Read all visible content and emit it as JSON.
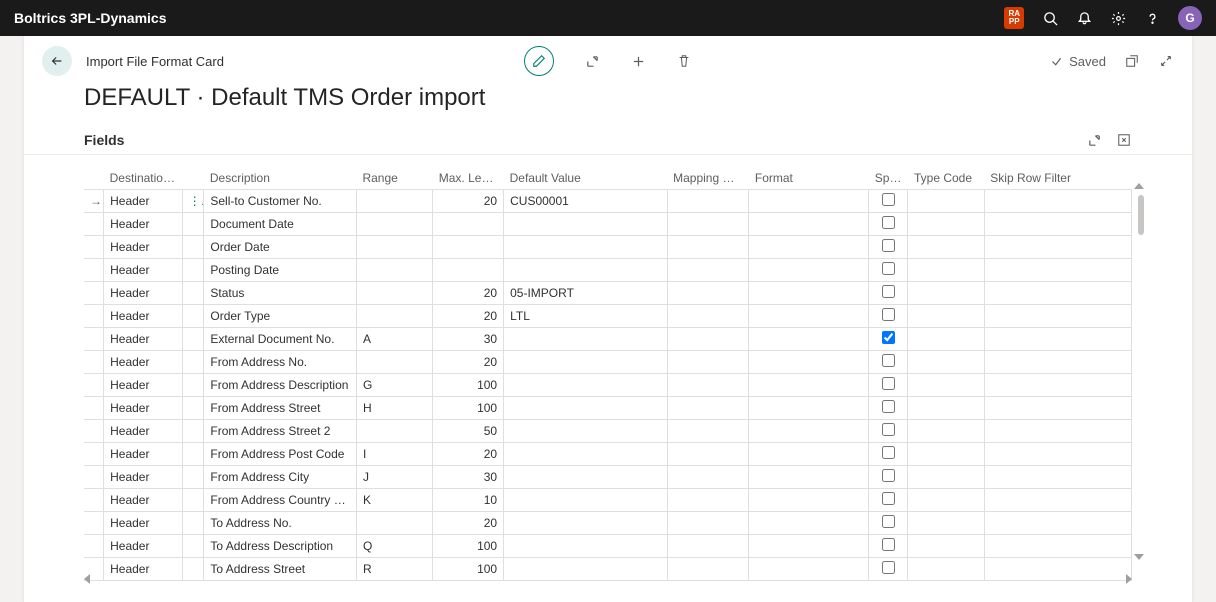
{
  "topbar": {
    "product": "Boltrics 3PL-Dynamics",
    "app_badge_line1": "RA",
    "app_badge_line2": "PP",
    "avatar_initial": "G"
  },
  "header": {
    "breadcrumb": "Import File Format Card",
    "title": "DEFAULT · Default TMS Order import",
    "saved_label": "Saved"
  },
  "section": {
    "label": "Fields"
  },
  "columns": {
    "destination_table": "Destination Table",
    "description": "Description",
    "range": "Range",
    "max_length": "Max. Length",
    "default_value": "Default Value",
    "mapping_code": "Mapping Code",
    "format": "Format",
    "split_doc": "Split Doc...",
    "type_code": "Type Code",
    "skip_row_filter": "Skip Row Filter"
  },
  "rows": [
    {
      "dest": "Header",
      "desc": "Sell-to Customer No.",
      "range": "",
      "max": "20",
      "def": "CUS00001",
      "split": false,
      "selected": true
    },
    {
      "dest": "Header",
      "desc": "Document Date",
      "range": "",
      "max": "",
      "def": "",
      "split": false
    },
    {
      "dest": "Header",
      "desc": "Order Date",
      "range": "",
      "max": "",
      "def": "",
      "split": false
    },
    {
      "dest": "Header",
      "desc": "Posting Date",
      "range": "",
      "max": "",
      "def": "",
      "split": false
    },
    {
      "dest": "Header",
      "desc": "Status",
      "range": "",
      "max": "20",
      "def": "05-IMPORT",
      "split": false
    },
    {
      "dest": "Header",
      "desc": "Order Type",
      "range": "",
      "max": "20",
      "def": "LTL",
      "split": false
    },
    {
      "dest": "Header",
      "desc": "External Document No.",
      "range": "A",
      "max": "30",
      "def": "",
      "split": true
    },
    {
      "dest": "Header",
      "desc": "From Address No.",
      "range": "",
      "max": "20",
      "def": "",
      "split": false
    },
    {
      "dest": "Header",
      "desc": "From Address Description",
      "range": "G",
      "max": "100",
      "def": "",
      "split": false
    },
    {
      "dest": "Header",
      "desc": "From Address Street",
      "range": "H",
      "max": "100",
      "def": "",
      "split": false
    },
    {
      "dest": "Header",
      "desc": "From Address Street 2",
      "range": "",
      "max": "50",
      "def": "",
      "split": false
    },
    {
      "dest": "Header",
      "desc": "From Address Post Code",
      "range": "I",
      "max": "20",
      "def": "",
      "split": false
    },
    {
      "dest": "Header",
      "desc": "From Address City",
      "range": "J",
      "max": "30",
      "def": "",
      "split": false
    },
    {
      "dest": "Header",
      "desc": "From Address Country Co…",
      "range": "K",
      "max": "10",
      "def": "",
      "split": false
    },
    {
      "dest": "Header",
      "desc": "To Address No.",
      "range": "",
      "max": "20",
      "def": "",
      "split": false
    },
    {
      "dest": "Header",
      "desc": "To Address Description",
      "range": "Q",
      "max": "100",
      "def": "",
      "split": false
    },
    {
      "dest": "Header",
      "desc": "To Address Street",
      "range": "R",
      "max": "100",
      "def": "",
      "split": false
    }
  ]
}
